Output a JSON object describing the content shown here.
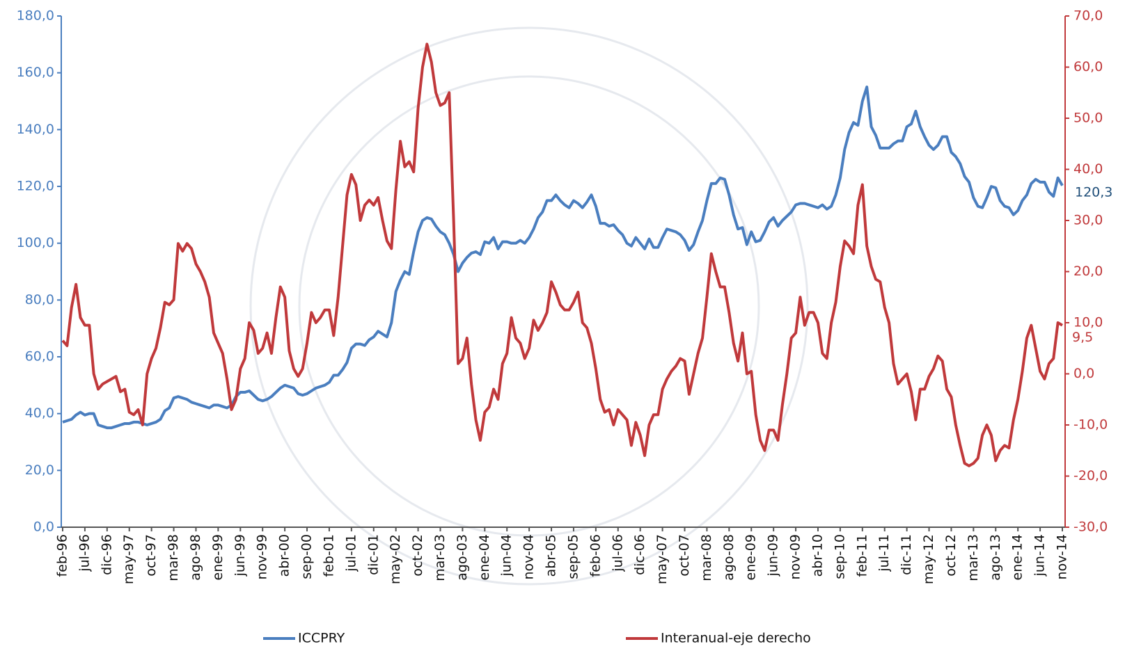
{
  "chart_data": {
    "type": "line",
    "categories": [
      "feb-96",
      null,
      null,
      null,
      null,
      "jul-96",
      null,
      null,
      null,
      null,
      "dic-96",
      null,
      null,
      null,
      null,
      "may-97",
      null,
      null,
      null,
      null,
      "oct-97",
      null,
      null,
      null,
      null,
      "mar-98",
      null,
      null,
      null,
      null,
      "ago-98",
      null,
      null,
      null,
      null,
      "ene-99",
      null,
      null,
      null,
      null,
      "jun-99",
      null,
      null,
      null,
      null,
      "nov-99",
      null,
      null,
      null,
      null,
      "abr-00",
      null,
      null,
      null,
      null,
      "sep-00",
      null,
      null,
      null,
      null,
      "feb-01",
      null,
      null,
      null,
      null,
      "jul-01",
      null,
      null,
      null,
      null,
      "dic-01",
      null,
      null,
      null,
      null,
      "may-02",
      null,
      null,
      null,
      null,
      "oct-02",
      null,
      null,
      null,
      null,
      "mar-03",
      null,
      null,
      null,
      null,
      "ago-03",
      null,
      null,
      null,
      null,
      "ene-04",
      null,
      null,
      null,
      null,
      "jun-04",
      null,
      null,
      null,
      null,
      "nov-04",
      null,
      null,
      null,
      null,
      "abr-05",
      null,
      null,
      null,
      null,
      "sep-05",
      null,
      null,
      null,
      null,
      "feb-06",
      null,
      null,
      null,
      null,
      "jul-06",
      null,
      null,
      null,
      null,
      "dic-06",
      null,
      null,
      null,
      null,
      "may-07",
      null,
      null,
      null,
      null,
      "oct-07",
      null,
      null,
      null,
      null,
      "mar-08",
      null,
      null,
      null,
      null,
      "ago-08",
      null,
      null,
      null,
      null,
      "ene-09",
      null,
      null,
      null,
      null,
      "jun-09",
      null,
      null,
      null,
      null,
      "nov-09",
      null,
      null,
      null,
      null,
      "abr-10",
      null,
      null,
      null,
      null,
      "sep-10",
      null,
      null,
      null,
      null,
      "feb-11",
      null,
      null,
      null,
      null,
      "jul-11",
      null,
      null,
      null,
      null,
      "dic-11",
      null,
      null,
      null,
      null,
      "may-12",
      null,
      null,
      null,
      null,
      "oct-12",
      null,
      null,
      null,
      null,
      "mar-13",
      null,
      null,
      null,
      null,
      "ago-13",
      null,
      null,
      null,
      null,
      "ene-14",
      null,
      null,
      null,
      null,
      "jun-14",
      null,
      null,
      null,
      null,
      "nov-14"
    ],
    "series": [
      {
        "name": "ICCPRY",
        "color": "#4a7ebf",
        "axis": "y",
        "values": [
          37,
          37.5,
          38,
          39.5,
          40.5,
          39.5,
          40,
          40,
          36,
          35.5,
          35,
          35,
          35.5,
          36,
          36.5,
          36.5,
          37,
          37,
          36.5,
          36,
          36.5,
          37,
          38,
          41,
          42,
          45.5,
          46,
          45.5,
          45,
          44,
          43.5,
          43,
          42.5,
          42,
          43,
          43,
          42.5,
          42,
          43,
          46,
          47.5,
          47.5,
          48,
          46.5,
          45,
          44.5,
          45,
          46,
          47.5,
          49,
          50,
          49.5,
          49,
          47,
          46.5,
          47,
          48,
          49,
          49.5,
          50,
          51,
          53.5,
          53.5,
          55.5,
          58,
          63,
          64.5,
          64.5,
          64,
          66,
          67,
          69,
          68,
          67,
          72,
          83,
          87,
          90,
          89,
          97,
          104,
          108,
          109,
          108.5,
          106,
          104,
          103,
          100,
          96,
          90,
          93,
          95,
          96.5,
          97,
          96,
          100.5,
          100,
          102,
          98,
          100.5,
          100.5,
          100,
          100,
          101,
          100,
          102,
          105,
          109,
          111,
          115,
          115,
          117,
          115,
          113.5,
          112.5,
          115,
          114,
          112.5,
          114.5,
          117,
          113,
          107,
          107,
          106,
          106.5,
          104.5,
          103,
          100,
          99,
          102,
          100,
          98,
          101.5,
          98.5,
          98.5,
          102,
          105,
          104.5,
          104,
          103,
          101,
          97.5,
          99.5,
          104,
          108,
          115,
          121,
          121,
          123,
          122.5,
          117,
          110,
          105,
          105.5,
          99.5,
          104,
          100.5,
          101,
          104,
          107.5,
          109,
          106,
          108,
          109.5,
          111,
          113.5,
          114,
          114,
          113.5,
          113,
          112.5,
          113.5,
          112,
          113,
          117,
          123,
          133,
          139,
          142.5,
          141.5,
          150,
          155,
          141,
          138,
          133.5,
          133.5,
          133.5,
          135,
          136,
          136,
          141,
          142,
          146.5,
          141,
          137.5,
          134.5,
          133,
          134.5,
          137.5,
          137.5,
          132,
          130.5,
          128,
          123.5,
          121.5,
          116,
          113,
          112.5,
          116,
          120,
          119.5,
          115,
          113,
          112.5,
          110,
          111.5,
          115,
          117,
          121,
          122.5,
          121.5,
          121.5,
          118,
          116.5,
          123,
          120.3
        ],
        "value_labels": [
          null,
          null,
          null,
          null,
          null,
          null,
          null,
          null,
          null,
          null,
          null,
          null,
          null,
          null,
          null,
          null,
          null,
          null,
          null,
          null,
          null,
          null,
          null,
          null,
          null,
          null,
          null,
          null,
          null,
          null,
          null,
          null,
          null,
          null,
          null,
          null,
          null,
          null,
          null,
          null,
          null,
          null,
          null,
          null,
          null,
          null,
          null,
          null,
          null,
          null,
          null,
          null,
          null,
          null,
          null,
          null,
          null,
          null,
          null,
          null,
          null,
          null,
          null,
          null,
          null,
          null,
          null,
          null,
          null,
          null,
          null,
          null,
          null,
          null,
          null,
          null,
          null,
          null,
          null,
          null,
          null,
          null,
          null,
          null,
          null,
          null,
          null,
          null,
          null,
          null,
          null,
          null,
          null,
          null,
          null,
          null,
          null,
          null,
          null,
          null,
          null,
          null,
          null,
          null,
          null,
          null,
          null,
          null,
          null,
          null,
          null,
          null,
          null,
          null,
          null,
          null,
          null,
          null,
          null,
          null,
          null,
          null,
          null,
          null,
          null,
          null,
          null,
          null,
          null,
          null,
          null,
          null,
          null,
          null,
          null,
          null,
          null,
          null,
          null,
          null,
          null,
          null,
          null,
          null,
          null,
          null,
          null,
          null,
          null,
          null,
          null,
          null,
          null,
          null,
          null,
          null,
          null,
          null,
          null,
          null,
          null,
          null,
          null,
          null,
          null,
          null,
          null,
          null,
          null,
          null,
          null,
          null,
          null,
          null,
          null,
          null,
          null,
          null,
          null,
          null,
          null,
          null,
          null,
          null,
          null,
          null,
          null,
          null,
          null,
          null,
          null,
          null,
          null,
          null,
          null,
          null,
          null,
          null,
          null,
          null,
          null,
          null,
          null,
          null,
          null,
          null,
          null,
          null,
          null,
          null,
          null,
          null,
          null,
          null,
          null,
          null,
          null,
          null,
          null,
          null,
          null,
          null,
          null,
          null,
          null,
          "120,3"
        ]
      },
      {
        "name": "Interanual-eje derecho",
        "color": "#c0393b",
        "axis": "y2",
        "values": [
          6.5,
          5.5,
          13,
          17.5,
          11,
          9.5,
          9.5,
          0,
          -3,
          -2,
          -1.5,
          -1,
          -0.5,
          -3.5,
          -3,
          -7.5,
          -8,
          -7,
          -10,
          0,
          3,
          5,
          9,
          14,
          13.5,
          14.5,
          25.5,
          24,
          25.5,
          24.5,
          21.5,
          20,
          18,
          15,
          8,
          6,
          4,
          -1,
          -7,
          -5,
          1,
          3,
          10,
          8.5,
          4,
          5,
          8,
          4,
          11,
          17,
          15,
          4.5,
          1,
          -0.5,
          1,
          6,
          12,
          10,
          11,
          12.5,
          12.5,
          7.5,
          15,
          25,
          35,
          39,
          37,
          30,
          33,
          34,
          33,
          34.5,
          30,
          26,
          24.5,
          36,
          45.5,
          40.5,
          41.5,
          39.5,
          52,
          60,
          64.5,
          61,
          55,
          52.5,
          53,
          55,
          30,
          2,
          3,
          7,
          -2,
          -9,
          -13,
          -7.5,
          -6.5,
          -3,
          -5,
          2,
          4,
          11,
          7,
          6,
          3,
          5,
          10.5,
          8.5,
          10,
          12,
          18,
          16,
          13.5,
          12.5,
          12.5,
          14,
          16,
          10,
          9,
          6,
          1,
          -5,
          -7.5,
          -7,
          -10,
          -7,
          -8,
          -9,
          -14,
          -9.5,
          -12,
          -16,
          -10,
          -8,
          -8,
          -3,
          -1,
          0.5,
          1.5,
          3,
          2.5,
          -4,
          0,
          4,
          7,
          15,
          23.5,
          20,
          17,
          17,
          12,
          6,
          2.5,
          8,
          0,
          0.5,
          -8,
          -13,
          -15,
          -11,
          -11,
          -13,
          -6,
          0,
          7,
          8,
          15,
          9.5,
          12,
          12,
          10,
          4,
          3,
          10,
          14,
          21,
          26,
          25,
          23.5,
          33,
          37,
          25,
          21,
          18.5,
          18,
          13,
          10,
          2,
          -2,
          -1,
          0,
          -3.5,
          -9,
          -3,
          -3,
          -0.5,
          1,
          3.5,
          2.5,
          -3,
          -4.5,
          -10,
          -14,
          -17.5,
          -18,
          -17.5,
          -16.5,
          -12,
          -10,
          -12,
          -17,
          -15,
          -14,
          -14.5,
          -9,
          -5,
          0.5,
          7,
          9.5,
          5,
          0.5,
          -1,
          2,
          3,
          10,
          9.5
        ],
        "value_labels": [
          null,
          null,
          null,
          null,
          null,
          null,
          null,
          null,
          null,
          null,
          null,
          null,
          null,
          null,
          null,
          null,
          null,
          null,
          null,
          null,
          null,
          null,
          null,
          null,
          null,
          null,
          null,
          null,
          null,
          null,
          null,
          null,
          null,
          null,
          null,
          null,
          null,
          null,
          null,
          null,
          null,
          null,
          null,
          null,
          null,
          null,
          null,
          null,
          null,
          null,
          null,
          null,
          null,
          null,
          null,
          null,
          null,
          null,
          null,
          null,
          null,
          null,
          null,
          null,
          null,
          null,
          null,
          null,
          null,
          null,
          null,
          null,
          null,
          null,
          null,
          null,
          null,
          null,
          null,
          null,
          null,
          null,
          null,
          null,
          null,
          null,
          null,
          null,
          null,
          null,
          null,
          null,
          null,
          null,
          null,
          null,
          null,
          null,
          null,
          null,
          null,
          null,
          null,
          null,
          null,
          null,
          null,
          null,
          null,
          null,
          null,
          null,
          null,
          null,
          null,
          null,
          null,
          null,
          null,
          null,
          null,
          null,
          null,
          null,
          null,
          null,
          null,
          null,
          null,
          null,
          null,
          null,
          null,
          null,
          null,
          null,
          null,
          null,
          null,
          null,
          null,
          null,
          null,
          null,
          null,
          null,
          null,
          null,
          null,
          null,
          null,
          null,
          null,
          null,
          null,
          null,
          null,
          null,
          null,
          null,
          null,
          null,
          null,
          null,
          null,
          null,
          null,
          null,
          null,
          null,
          null,
          null,
          null,
          null,
          null,
          null,
          null,
          null,
          null,
          null,
          null,
          null,
          null,
          null,
          null,
          null,
          null,
          null,
          null,
          null,
          null,
          null,
          null,
          null,
          null,
          null,
          null,
          null,
          null,
          null,
          null,
          null,
          null,
          null,
          null,
          null,
          null,
          null,
          null,
          null,
          null,
          null,
          null,
          null,
          null,
          null,
          null,
          null,
          null,
          null,
          null,
          null,
          null,
          null,
          null,
          "9,5"
        ]
      }
    ],
    "ylim": [
      0,
      180
    ],
    "yticks": [
      {
        "value": 0,
        "label": "0,0"
      },
      {
        "value": 20,
        "label": "20,0"
      },
      {
        "value": 40,
        "label": "40,0"
      },
      {
        "value": 60,
        "label": "60,0"
      },
      {
        "value": 80,
        "label": "80,0"
      },
      {
        "value": 100,
        "label": "100,0"
      },
      {
        "value": 120,
        "label": "120,0"
      },
      {
        "value": 140,
        "label": "140,0"
      },
      {
        "value": 160,
        "label": "160,0"
      },
      {
        "value": 180,
        "label": "180,0"
      }
    ],
    "y2lim": [
      -30,
      70
    ],
    "y2ticks": [
      {
        "value": -30,
        "label": "-30,0"
      },
      {
        "value": -20,
        "label": "-20,0"
      },
      {
        "value": -10,
        "label": "-10,0"
      },
      {
        "value": 0,
        "label": "0,0"
      },
      {
        "value": 10,
        "label": "10,0"
      },
      {
        "value": 20,
        "label": "20,0"
      },
      {
        "value": 30,
        "label": "30,0"
      },
      {
        "value": 40,
        "label": "40,0"
      },
      {
        "value": 50,
        "label": "50,0"
      },
      {
        "value": 60,
        "label": "60,0"
      },
      {
        "value": 70,
        "label": "70,0"
      }
    ],
    "grid": false
  }
}
